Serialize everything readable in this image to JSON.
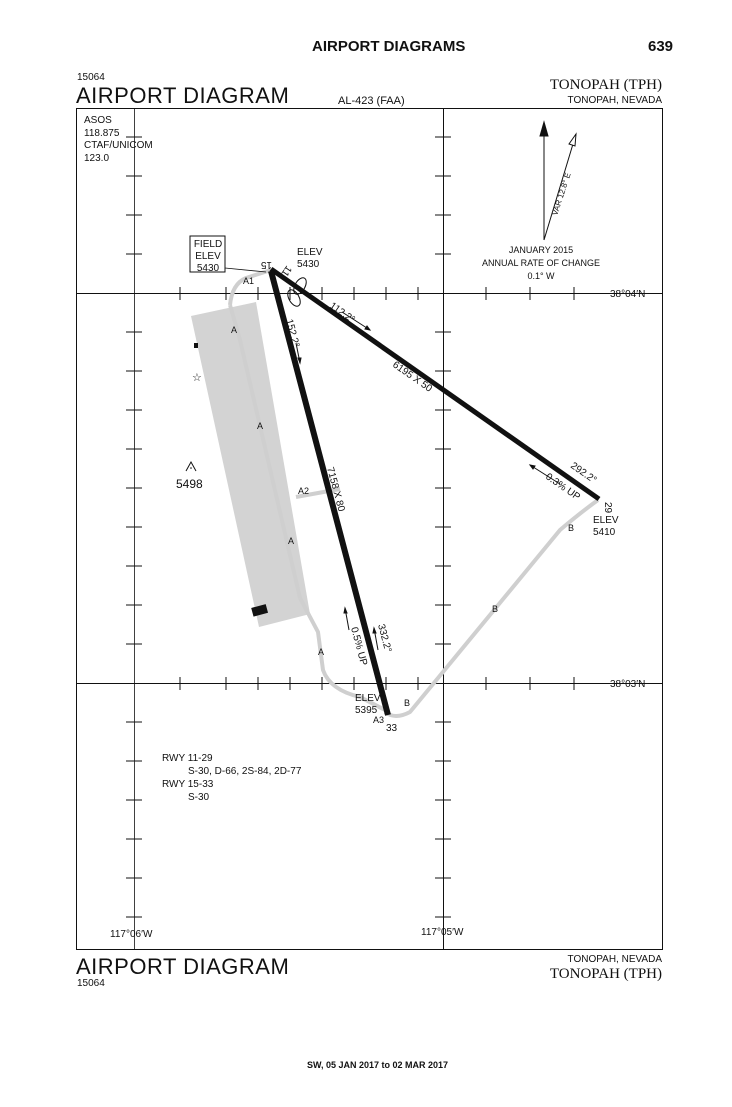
{
  "header": {
    "section_title": "AIRPORT DIAGRAMS",
    "page_number": "639"
  },
  "chart": {
    "doc_id": "15064",
    "title": "AIRPORT DIAGRAM",
    "chart_id": "AL-423 (FAA)",
    "airport": "TONOPAH (TPH)",
    "location": "TONOPAH, NEVADA"
  },
  "comms": {
    "asos_label": "ASOS",
    "asos_freq": "118.875",
    "ctaf_label": "CTAF/UNICOM",
    "ctaf_freq": "123.0"
  },
  "variation": {
    "var_label": "VAR 12.8° E",
    "date": "JANUARY 2015",
    "rate_label": "ANNUAL RATE OF CHANGE",
    "rate_value": "0.1° W"
  },
  "field_elev": {
    "line1": "FIELD",
    "line2": "ELEV",
    "value": "5430"
  },
  "elevations": {
    "rwy11_label": "ELEV",
    "rwy11_value": "5430",
    "rwy29_label": "ELEV",
    "rwy29_value": "5410",
    "rwy33_label": "ELEV",
    "rwy33_value": "5395",
    "obstacle_value": "5498"
  },
  "runways": {
    "rwy_11_29": {
      "end_a": "11",
      "end_b": "29",
      "heading_a": "112.2°",
      "heading_b": "292.2°",
      "dims": "6195 X 50",
      "gradient": "0.3% UP"
    },
    "rwy_15_33": {
      "end_a": "15",
      "end_b": "33",
      "heading_a": "152.2°",
      "heading_b": "332.2°",
      "dims": "7158 X 80",
      "gradient": "0.5% UP"
    }
  },
  "taxiways": {
    "a": "A",
    "a1": "A1",
    "a2": "A2",
    "a3": "A3",
    "b": "B"
  },
  "coords": {
    "lat_north": "38°04′N",
    "lat_south": "38°03′N",
    "lon_west": "117°06′W",
    "lon_east": "117°05′W"
  },
  "weights": {
    "rwy1_label": "RWY 11-29",
    "rwy1_values": "S-30, D-66, 2S-84, 2D-77",
    "rwy2_label": "RWY 15-33",
    "rwy2_values": "S-30"
  },
  "footer": {
    "title": "AIRPORT DIAGRAM",
    "doc_id": "15064",
    "location": "TONOPAH, NEVADA",
    "airport": "TONOPAH (TPH)",
    "effective": "SW, 05 JAN 2017 to 02 MAR 2017"
  }
}
